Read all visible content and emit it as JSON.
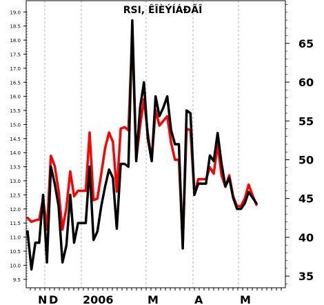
{
  "chart_data": {
    "type": "line",
    "title": "RSI, ÊÎÈÝÍÁÐÃÎ",
    "x_labels": [
      "N",
      "D",
      "2006",
      "M",
      "A",
      "M"
    ],
    "y_left": {
      "range": [
        9.2,
        19.4
      ],
      "ticks": [
        "9.5",
        "10.0",
        "10.5",
        "11.0",
        "11.5",
        "12.0",
        "12.5",
        "13.0",
        "13.5",
        "14.0",
        "14.5",
        "15.0",
        "15.5",
        "16.0",
        "16.5",
        "17.0",
        "17.5",
        "18.0",
        "18.5",
        "19.0"
      ]
    },
    "y_right": {
      "range": [
        33.5,
        70.5
      ],
      "ticks": [
        "35",
        "40",
        "45",
        "50",
        "55",
        "60",
        "65"
      ]
    },
    "grid": true,
    "series": [
      {
        "role": "price",
        "axis": "left",
        "color": "#000000",
        "values": [
          11.2,
          9.85,
          10.8,
          10.8,
          12.5,
          10.1,
          13.5,
          12.9,
          12.1,
          10.1,
          10.7,
          12.5,
          10.8,
          11.5,
          11.5,
          11.5,
          13.5,
          10.9,
          11.2,
          12.1,
          12.8,
          13.4,
          13.1,
          11.3,
          13.6,
          13.6,
          13.5,
          18.7,
          13.7,
          15.6,
          16.5,
          14.5,
          13.7,
          16.0,
          15.3,
          15.6,
          16.0,
          14.8,
          14.3,
          14.3,
          10.6,
          15.5,
          15.4,
          12.5,
          12.9,
          12.9,
          12.9,
          13.9,
          13.7,
          14.7,
          13.6,
          12.8,
          13.1,
          12.4,
          12.0,
          12.0,
          12.2,
          12.6,
          12.4,
          12.2
        ]
      },
      {
        "role": "rsi",
        "axis": "right",
        "color": "#ff0000",
        "values": [
          42.5,
          42,
          42.2,
          42.3,
          45.0,
          41.0,
          50.5,
          49.2,
          46.0,
          41.0,
          43.8,
          48.5,
          45.3,
          46.0,
          46.0,
          46.0,
          53.5,
          44.8,
          45.0,
          48.2,
          51.5,
          53.5,
          52.3,
          45.9,
          54.0,
          54.2,
          53.8,
          66.2,
          50.0,
          54.3,
          57.8,
          53.4,
          50.0,
          56.4,
          54.4,
          55.0,
          55.6,
          52.2,
          50.0,
          50.0,
          39.0,
          54.0,
          53.8,
          45.5,
          47.5,
          47.5,
          47.5,
          49.0,
          48.2,
          52.0,
          48.0,
          46.5,
          48.0,
          45.3,
          44.0,
          44.0,
          45.0,
          46.8,
          45.4,
          44.2
        ]
      }
    ]
  }
}
